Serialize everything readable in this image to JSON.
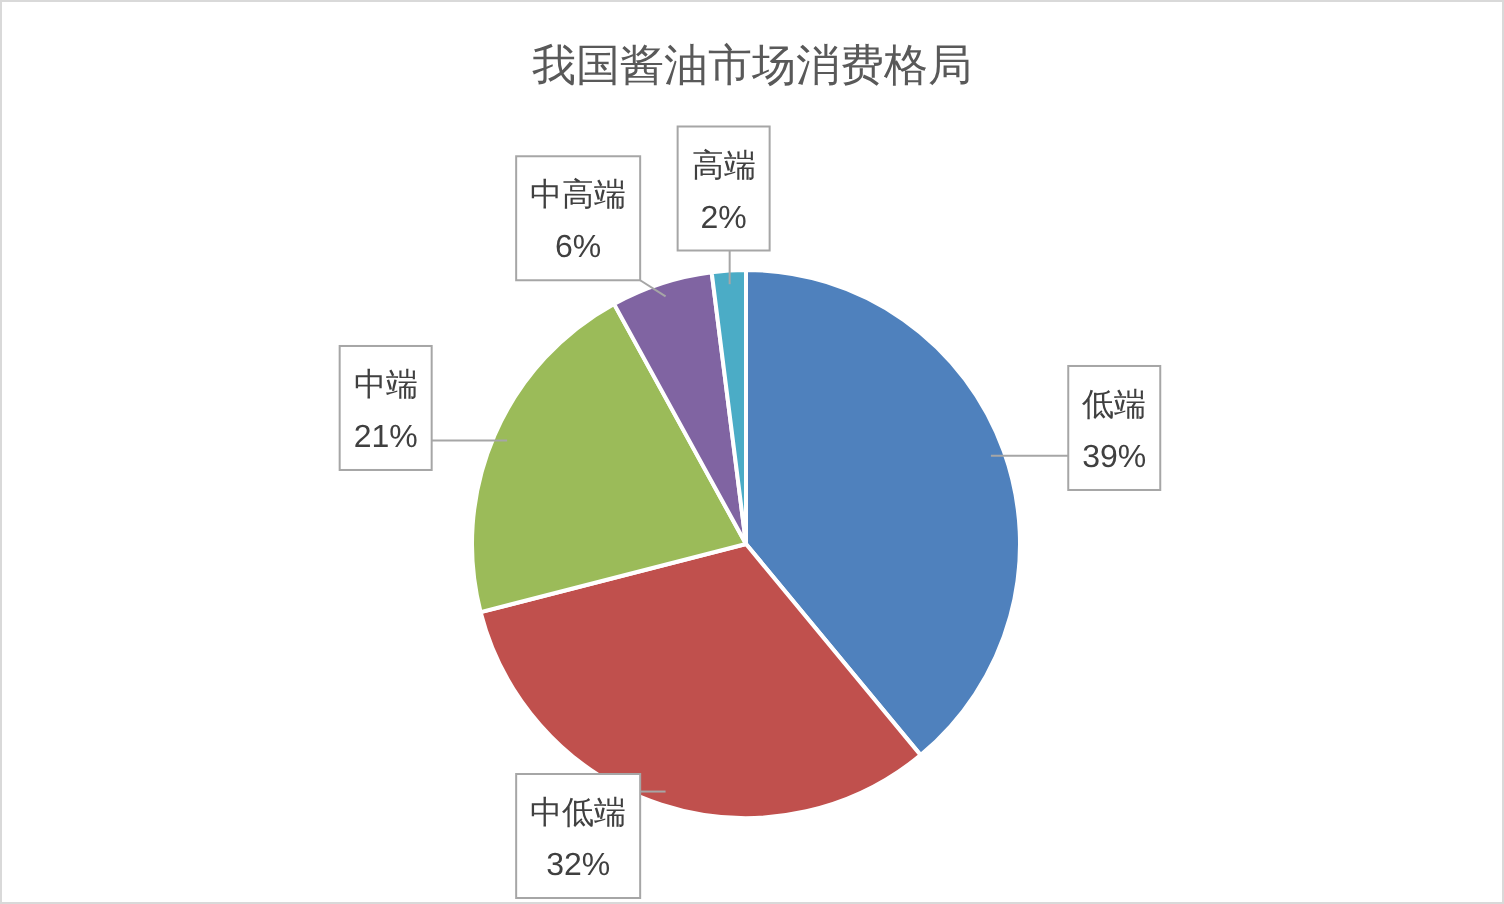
{
  "chart_data": {
    "type": "pie",
    "title": "我国酱油市场消费格局",
    "categories": [
      "低端",
      "中低端",
      "中端",
      "中高端",
      "高端"
    ],
    "values": [
      39,
      32,
      21,
      6,
      2
    ],
    "colors": [
      "#4f81bd",
      "#c0504d",
      "#9bbb59",
      "#8064a2",
      "#4bacc6"
    ],
    "value_labels": [
      "39%",
      "32%",
      "21%",
      "6%",
      "2%"
    ]
  }
}
